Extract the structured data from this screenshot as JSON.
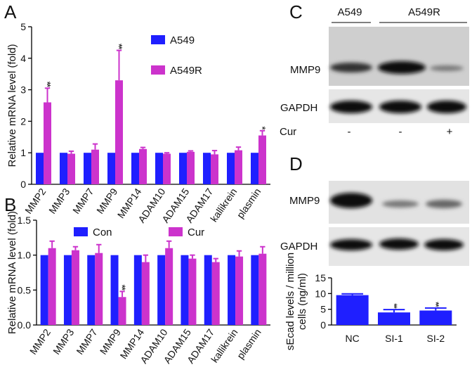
{
  "panel_labels": [
    "A",
    "B",
    "C",
    "D"
  ],
  "chart_data": [
    {
      "type": "bar",
      "ylabel": [
        "Relative mRNA level (fold)"
      ],
      "categories": [
        "MMP2",
        "MMP3",
        "MMP7",
        "MMP9",
        "MMP14",
        "ADAM10",
        "ADAM15",
        "ADAM17",
        "kallikrein",
        "plasmin"
      ],
      "series": [
        {
          "name": "A549",
          "color": "#1f1fff",
          "values": [
            1,
            1,
            1,
            1,
            1,
            1,
            1,
            1,
            1,
            1
          ]
        },
        {
          "name": "A549R",
          "color": "#cc33cc",
          "values": [
            2.6,
            0.97,
            1.1,
            3.3,
            1.12,
            0.97,
            1.03,
            0.95,
            1.08,
            1.55
          ],
          "errors": [
            0.45,
            0.08,
            0.18,
            0.95,
            0.05,
            0.03,
            0.03,
            0.12,
            0.1,
            0.15
          ],
          "significance": [
            "**",
            null,
            null,
            "**",
            null,
            null,
            null,
            null,
            null,
            "*"
          ]
        }
      ],
      "ylim": [
        0,
        5
      ],
      "yticks": [
        0,
        1,
        2,
        3,
        4,
        5
      ]
    },
    {
      "type": "bar",
      "ylabel": [
        "Relative mRNA level (fold)"
      ],
      "categories": [
        "MMP2",
        "MMP3",
        "MMP7",
        "MMP9",
        "MMP14",
        "ADAM10",
        "ADAM15",
        "ADAM17",
        "kallikrein",
        "plasmin"
      ],
      "series": [
        {
          "name": "Con",
          "color": "#1f1fff",
          "values": [
            1,
            1,
            1,
            1,
            1,
            1,
            1,
            1,
            1,
            1
          ]
        },
        {
          "name": "Cur",
          "color": "#cc33cc",
          "values": [
            1.1,
            1.07,
            1.03,
            0.4,
            0.9,
            1.1,
            0.95,
            0.9,
            0.98,
            1.02
          ],
          "errors": [
            0.1,
            0.05,
            0.12,
            0.08,
            0.1,
            0.1,
            0.05,
            0.05,
            0.08,
            0.1
          ],
          "significance": [
            null,
            null,
            null,
            "**",
            null,
            null,
            null,
            null,
            null,
            null
          ]
        }
      ],
      "ylim": [
        0,
        1.5
      ],
      "yticks": [
        {
          "value": 0,
          "label": "0.0"
        },
        {
          "value": 0.5,
          "label": "0.5"
        },
        {
          "value": 1,
          "label": "1.0"
        },
        {
          "value": 1.5,
          "label": "1.5"
        }
      ]
    },
    {
      "type": "bar",
      "ylabel": [
        "sEcad levels / million",
        "cells (ng/ml)"
      ],
      "categories": [
        "NC",
        "SI-1",
        "SI-2"
      ],
      "series": [
        {
          "color": "#1f1fff",
          "values": [
            9.5,
            4.0,
            4.6
          ],
          "errors": [
            0.4,
            0.9,
            0.8
          ],
          "significance": [
            null,
            "**",
            "**"
          ]
        }
      ],
      "ylim": [
        0,
        15
      ],
      "yticks": [
        0,
        5,
        10,
        15
      ]
    }
  ],
  "blots": {
    "C": {
      "groups": [
        "A549",
        "A549R"
      ],
      "rows": [
        "MMP9",
        "GAPDH"
      ],
      "treatment": "Cur",
      "treatment_signs": [
        "-",
        "-",
        "+"
      ]
    },
    "D": {
      "rows": [
        "MMP9",
        "GAPDH"
      ]
    }
  }
}
